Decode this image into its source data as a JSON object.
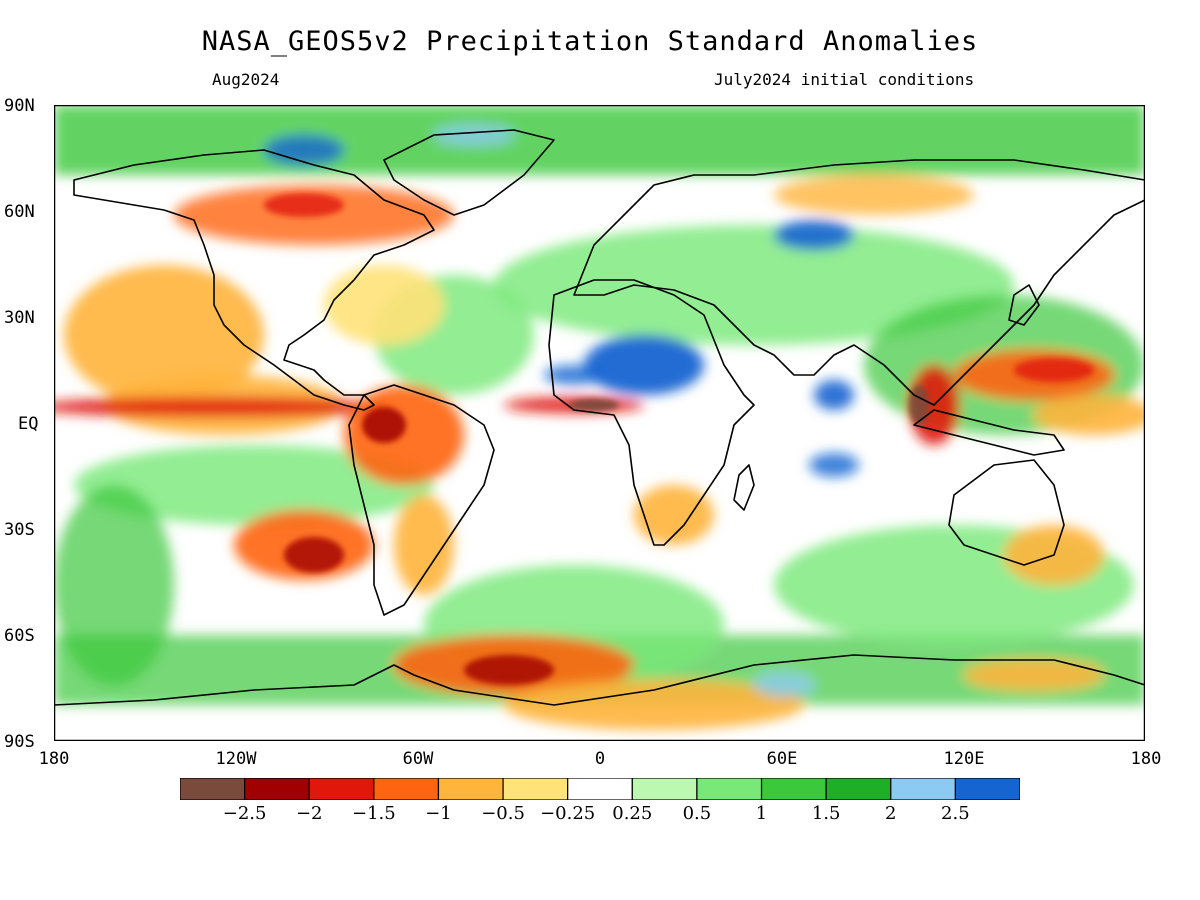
{
  "title": "NASA_GEOS5v2 Precipitation Standard Anomalies",
  "subtitle_left": "Aug2024",
  "subtitle_right": "July2024 initial conditions",
  "y_axis_labels": [
    "90N",
    "60N",
    "30N",
    "EQ",
    "30S",
    "60S",
    "90S"
  ],
  "x_axis_labels": [
    "180",
    "120W",
    "60W",
    "0",
    "60E",
    "120E",
    "180"
  ],
  "colorbar": {
    "colors": [
      "#7a4a3c",
      "#a00000",
      "#e0180c",
      "#ff6410",
      "#ffb43c",
      "#ffe278",
      "#ffffff",
      "#bcf8b0",
      "#78e878",
      "#3cc83c",
      "#1eae28",
      "#8ccaf4",
      "#1464d2"
    ],
    "labels": [
      "−2.5",
      "−2",
      "−1.5",
      "−1",
      "−0.5",
      "−0.25",
      "0.25",
      "0.5",
      "1",
      "1.5",
      "2",
      "2.5"
    ]
  },
  "palette": {
    "ocean_base": "#ffffff",
    "land_outline": "#000000"
  }
}
